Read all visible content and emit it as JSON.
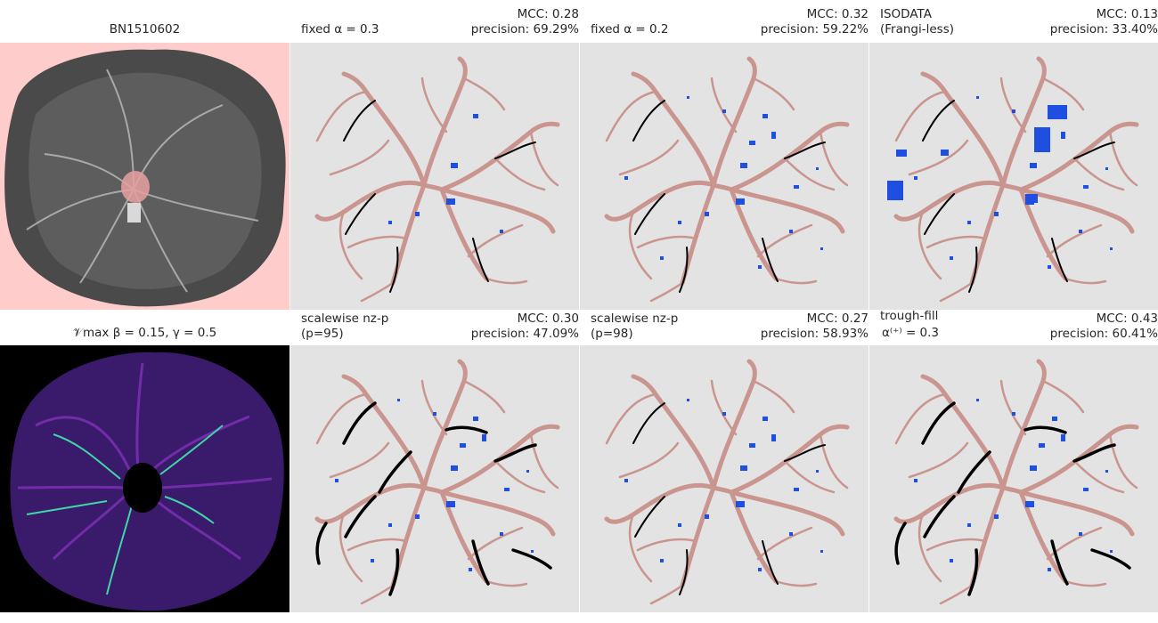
{
  "panels": [
    {
      "id": "p1",
      "title": "BN1510602"
    },
    {
      "id": "p2",
      "left_1": "fixed α = 0.3",
      "right_1": "MCC: 0.28",
      "right_2": "precision: 69.29%"
    },
    {
      "id": "p3",
      "left_1": "fixed α = 0.2",
      "right_1": "MCC: 0.32",
      "right_2": "precision: 59.22%"
    },
    {
      "id": "p4",
      "left_1": "ISODATA",
      "left_2": "(Frangi-less)",
      "right_1": "MCC: 0.13",
      "right_2": "precision: 33.40%"
    },
    {
      "id": "p5",
      "title": "𝒱max  β = 0.15, γ = 0.5"
    },
    {
      "id": "p6",
      "left_1": "scalewise nz-p",
      "left_2": "(p=95)",
      "right_1": "MCC: 0.30",
      "right_2": "precision: 47.09%"
    },
    {
      "id": "p7",
      "left_1": "scalewise nz-p",
      "left_2": "(p=98)",
      "right_1": "MCC: 0.27",
      "right_2": "precision: 58.93%"
    },
    {
      "id": "p8",
      "left_1": "trough-fill",
      "left_2": "α⁽⁺⁾ = 0.3",
      "right_1": "MCC: 0.43",
      "right_2": "precision: 60.41%"
    }
  ],
  "colors": {
    "panel_bg_gray": "#e3e3e3",
    "placenta_bg": "#ffcccc",
    "vessel_truth": "#c9958e",
    "true_positive": "#000000",
    "false_positive": "#1f4fe0",
    "vmax_bg": "#000000"
  }
}
